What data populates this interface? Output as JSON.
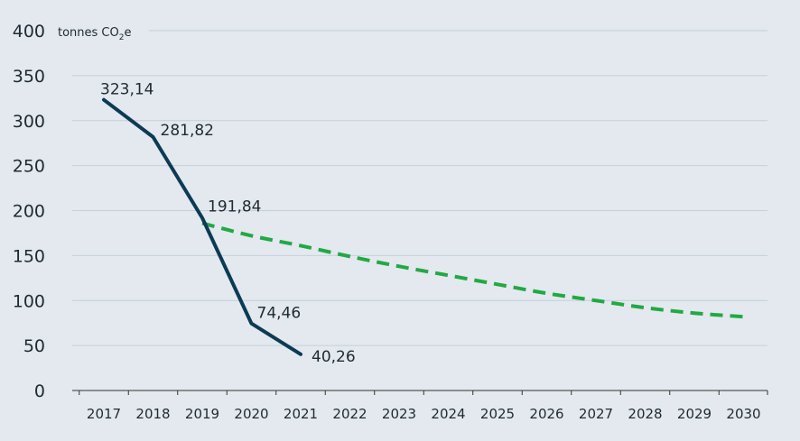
{
  "chart_data": {
    "type": "line",
    "unit_label": {
      "main": "tonnes CO",
      "sub": "2",
      "tail": "e"
    },
    "x": [
      "2017",
      "2018",
      "2019",
      "2020",
      "2021",
      "2022",
      "2023",
      "2024",
      "2025",
      "2026",
      "2027",
      "2028",
      "2029",
      "2030"
    ],
    "ylim": [
      0,
      400
    ],
    "yticks": [
      0,
      50,
      100,
      150,
      200,
      250,
      300,
      350,
      400
    ],
    "grid": true,
    "series": [
      {
        "style": "solid",
        "color": "#0d3a55",
        "x": [
          "2017",
          "2018",
          "2019",
          "2020",
          "2021"
        ],
        "values": [
          323.14,
          281.82,
          191.84,
          74.46,
          40.26
        ],
        "labels": [
          "323,14",
          "281,82",
          "191,84",
          "74,46",
          "40,26"
        ]
      },
      {
        "style": "dashed",
        "color": "#22a845",
        "x": [
          "2019",
          "2020",
          "2021",
          "2022",
          "2023",
          "2024",
          "2025",
          "2026",
          "2027",
          "2028",
          "2029",
          "2030"
        ],
        "values": [
          186,
          172,
          161,
          149,
          138,
          128,
          118,
          108,
          100,
          92,
          86,
          82
        ]
      }
    ]
  }
}
